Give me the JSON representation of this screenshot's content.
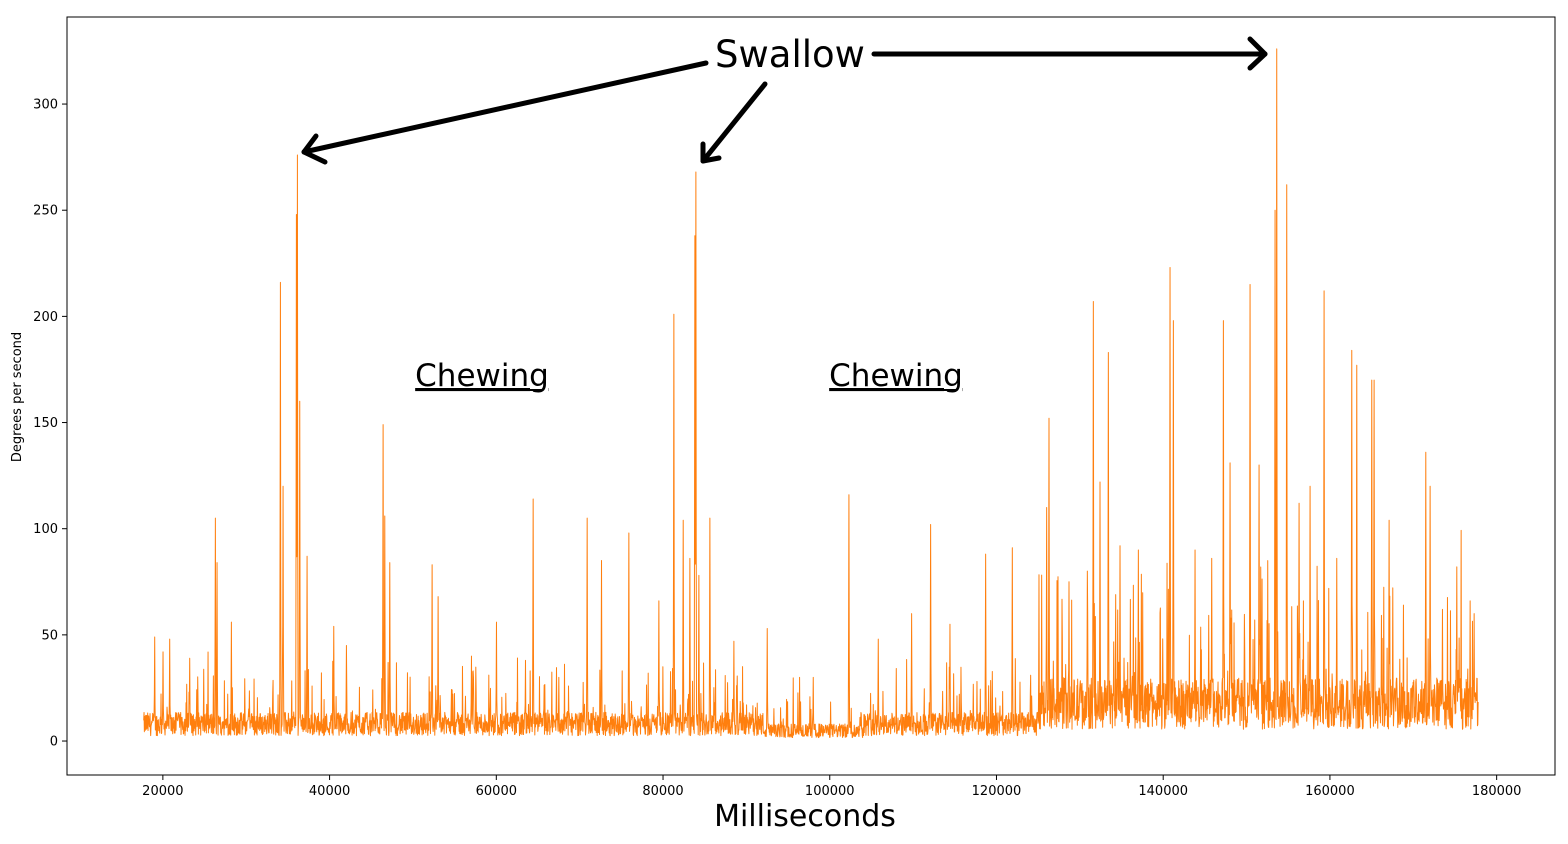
{
  "chart_data": {
    "type": "line",
    "xlabel": "Milliseconds",
    "ylabel": "Degrees per second",
    "xlim": [
      8500,
      187000
    ],
    "ylim": [
      -16,
      341
    ],
    "xticks": [
      20000,
      40000,
      60000,
      80000,
      100000,
      120000,
      140000,
      160000,
      180000
    ],
    "yticks": [
      0,
      50,
      100,
      150,
      200,
      250,
      300
    ],
    "grid": false,
    "series_color": "#ff7f0e",
    "x_range": [
      17700,
      177800
    ],
    "baseline": 10,
    "peaks": [
      [
        19000,
        49
      ],
      [
        20000,
        42
      ],
      [
        20800,
        48
      ],
      [
        23200,
        39
      ],
      [
        26300,
        105
      ],
      [
        26500,
        84
      ],
      [
        28200,
        56
      ],
      [
        34100,
        216
      ],
      [
        34400,
        120
      ],
      [
        36000,
        248
      ],
      [
        36150,
        276
      ],
      [
        36400,
        160
      ],
      [
        37300,
        87
      ],
      [
        40500,
        54
      ],
      [
        42000,
        45
      ],
      [
        46400,
        149
      ],
      [
        46600,
        106
      ],
      [
        47200,
        84
      ],
      [
        52300,
        83
      ],
      [
        53000,
        68
      ],
      [
        57000,
        40
      ],
      [
        60000,
        56
      ],
      [
        63500,
        38
      ],
      [
        64400,
        114
      ],
      [
        67500,
        30
      ],
      [
        70900,
        105
      ],
      [
        72600,
        85
      ],
      [
        75900,
        98
      ],
      [
        79500,
        66
      ],
      [
        81300,
        201
      ],
      [
        82400,
        104
      ],
      [
        83200,
        86
      ],
      [
        83800,
        238
      ],
      [
        83950,
        268
      ],
      [
        84300,
        78
      ],
      [
        85600,
        105
      ],
      [
        88500,
        47
      ],
      [
        92500,
        53
      ],
      [
        98000,
        30
      ],
      [
        102300,
        116
      ],
      [
        105800,
        48
      ],
      [
        109800,
        60
      ],
      [
        112100,
        102
      ],
      [
        114400,
        55
      ],
      [
        118700,
        88
      ],
      [
        121900,
        91
      ],
      [
        126000,
        110
      ],
      [
        126300,
        152
      ],
      [
        128700,
        75
      ],
      [
        130900,
        80
      ],
      [
        131600,
        207
      ],
      [
        132400,
        122
      ],
      [
        133400,
        183
      ],
      [
        134800,
        92
      ],
      [
        137000,
        90
      ],
      [
        140800,
        223
      ],
      [
        141200,
        198
      ],
      [
        143800,
        90
      ],
      [
        145800,
        86
      ],
      [
        147200,
        198
      ],
      [
        148000,
        131
      ],
      [
        150400,
        215
      ],
      [
        151500,
        130
      ],
      [
        153400,
        250
      ],
      [
        153600,
        326
      ],
      [
        154800,
        262
      ],
      [
        156300,
        112
      ],
      [
        157600,
        120
      ],
      [
        159300,
        212
      ],
      [
        160800,
        86
      ],
      [
        162600,
        184
      ],
      [
        163200,
        177
      ],
      [
        165000,
        170
      ],
      [
        165300,
        170
      ],
      [
        167100,
        104
      ],
      [
        168800,
        64
      ],
      [
        171500,
        136
      ],
      [
        172000,
        120
      ],
      [
        173500,
        62
      ],
      [
        175200,
        82
      ],
      [
        176800,
        66
      ],
      [
        177300,
        60
      ]
    ],
    "annotations": {
      "swallow": "Swallow",
      "chewing_1": "Chewing",
      "chewing_2": "Chewing"
    }
  }
}
